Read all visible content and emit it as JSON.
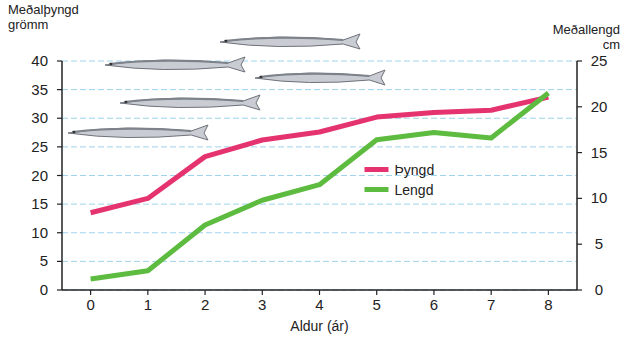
{
  "chart_data": {
    "type": "line",
    "x_label": "Aldur (ár)",
    "y_label": "Meðalþyngd grömm",
    "y2_label": "Meðallengd cm",
    "x": [
      0,
      1,
      2,
      3,
      4,
      5,
      6,
      7,
      8
    ],
    "series": [
      {
        "name": "Þyngd",
        "color": "#e4336f",
        "values": [
          13.5,
          16,
          23.3,
          26.2,
          27.6,
          30.2,
          31,
          31.4,
          33.7
        ]
      },
      {
        "name": "Lengd",
        "color": "#5dbb3f",
        "axis": "y2",
        "values": [
          1.2,
          2.1,
          7.1,
          9.8,
          11.5,
          16.4,
          17.2,
          16.6,
          21.5
        ]
      }
    ],
    "xlim": [
      -0.5,
      8.5
    ],
    "xticks": [
      0,
      1,
      2,
      3,
      4,
      5,
      6,
      7,
      8
    ],
    "ylim": [
      0,
      40
    ],
    "yticks": [
      0,
      5,
      10,
      15,
      20,
      25,
      30,
      35,
      40
    ],
    "y2lim": [
      0,
      25
    ],
    "y2ticks": [
      0,
      5,
      10,
      15,
      20,
      25
    ],
    "grid": true,
    "legend": "center"
  }
}
